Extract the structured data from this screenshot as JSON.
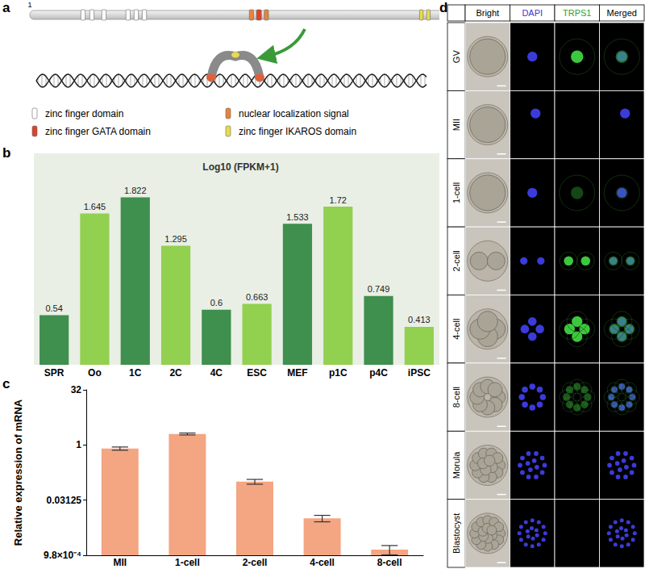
{
  "panel_labels": [
    "a",
    "b",
    "c",
    "d"
  ],
  "protein_diagram": {
    "start": 1,
    "end": 1281,
    "domains": [
      {
        "type": "zinc finger domain",
        "start": 145,
        "end": 157
      },
      {
        "type": "zinc finger domain",
        "start": 170,
        "end": 182
      },
      {
        "type": "zinc finger domain",
        "start": 204,
        "end": 216
      },
      {
        "type": "zinc finger domain",
        "start": 272,
        "end": 284
      },
      {
        "type": "zinc finger domain",
        "start": 295,
        "end": 307
      },
      {
        "type": "zinc finger domain",
        "start": 318,
        "end": 330
      },
      {
        "type": "nuclear localization signal",
        "start": 620,
        "end": 632
      },
      {
        "type": "zinc finger GATA domain",
        "start": 640,
        "end": 654
      },
      {
        "type": "nuclear localization signal",
        "start": 662,
        "end": 674
      },
      {
        "type": "zinc finger IKAROS domain",
        "start": 1100,
        "end": 1110
      },
      {
        "type": "zinc finger IKAROS domain",
        "start": 1120,
        "end": 1130
      }
    ],
    "legend": [
      {
        "label": "zinc finger domain",
        "color": "#ffffff"
      },
      {
        "label": "nuclear localization signal",
        "color": "#e8833a"
      },
      {
        "label": "zinc finger GATA domain",
        "color": "#d9452b"
      },
      {
        "label": "zinc finger IKAROS domain",
        "color": "#e9dc4a"
      }
    ]
  },
  "chart_data": [
    {
      "type": "bar",
      "title": "Log10 (FPKM+1)",
      "categories": [
        "SPR",
        "Oo",
        "1C",
        "2C",
        "4C",
        "ESC",
        "MEF",
        "p1C",
        "p4C",
        "iPSC"
      ],
      "values": [
        0.54,
        1.645,
        1.822,
        1.295,
        0.6,
        0.663,
        1.533,
        1.72,
        0.749,
        0.413
      ],
      "colors": [
        "#3f8f4f",
        "#92d050",
        "#3f8f4f",
        "#92d050",
        "#3f8f4f",
        "#92d050",
        "#3f8f4f",
        "#92d050",
        "#3f8f4f",
        "#92d050"
      ],
      "ylim": [
        0,
        2.3
      ],
      "tick_labels": "x",
      "data_labels": true,
      "grid": false
    },
    {
      "type": "bar",
      "y_label": "Relative expression of mRNA",
      "categories": [
        "MII",
        "1-cell",
        "2-cell",
        "4-cell",
        "8-cell"
      ],
      "values": [
        0.8,
        2.0,
        0.1,
        0.01,
        0.0014
      ],
      "errors": [
        0.08,
        0.12,
        0.015,
        0.002,
        0.0004
      ],
      "color": "#f4a582",
      "log": "y",
      "ylim": [
        0.0009765625,
        32
      ],
      "yticks": [
        {
          "value": 0.0009765625,
          "label": "9.8×10⁻⁴"
        },
        0.03125,
        1,
        32
      ],
      "grid": false
    }
  ],
  "microscopy": {
    "columns": [
      "Bright",
      "DAPI",
      "TRPS1",
      "Merged"
    ],
    "column_colors": [
      "#000000",
      "#3a3ad0",
      "#2ea02e",
      "#000000"
    ],
    "rows": [
      "GV",
      "MII",
      "1-cell",
      "2-cell",
      "4-cell",
      "8-cell",
      "Morula",
      "Blastocyst"
    ]
  }
}
